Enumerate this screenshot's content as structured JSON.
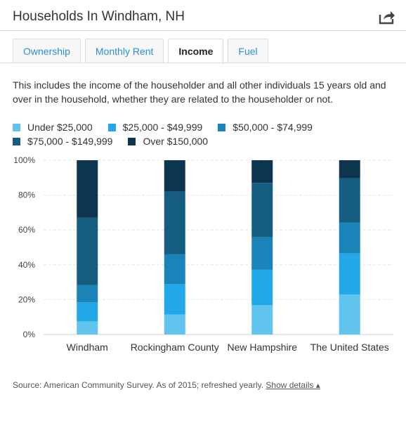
{
  "header": {
    "title": "Households In Windham, NH",
    "share_icon": "share-icon"
  },
  "tabs": [
    {
      "label": "Ownership",
      "active": false
    },
    {
      "label": "Monthly Rent",
      "active": false
    },
    {
      "label": "Income",
      "active": true
    },
    {
      "label": "Fuel",
      "active": false
    }
  ],
  "description": "This includes the income of the householder and all other individuals 15 years old and over in the household, whether they are related to the householder or not.",
  "colors": {
    "under_25k": "#61c4ef",
    "k25_50": "#22a8e8",
    "k50_75": "#1a84b8",
    "k75_150": "#155e82",
    "over_150": "#0e3550",
    "tab_link": "#2a8fd1"
  },
  "chart_data": {
    "type": "bar",
    "stacked": true,
    "categories": [
      "Windham",
      "Rockingham County",
      "New Hampshire",
      "The United States"
    ],
    "series": [
      {
        "name": "Under $25,000",
        "values": [
          7.5,
          11.5,
          16.8,
          23.0
        ]
      },
      {
        "name": "$25,000 - $49,999",
        "values": [
          11.0,
          17.5,
          20.5,
          23.5
        ]
      },
      {
        "name": "$50,000 - $74,999",
        "values": [
          9.8,
          17.0,
          18.5,
          17.8
        ]
      },
      {
        "name": "$75,000 - $149,999",
        "values": [
          38.7,
          36.0,
          31.2,
          25.3
        ]
      },
      {
        "name": "Over $150,000",
        "values": [
          33.0,
          18.0,
          13.0,
          10.4
        ]
      }
    ],
    "yticks": [
      "0%",
      "20%",
      "40%",
      "60%",
      "80%",
      "100%"
    ],
    "ylim": [
      0,
      100
    ],
    "grid": true,
    "legend_position": "top-left"
  },
  "source": {
    "text": "Source: American Community Survey. As of 2015; refreshed yearly.",
    "link": "Show details ▴"
  }
}
